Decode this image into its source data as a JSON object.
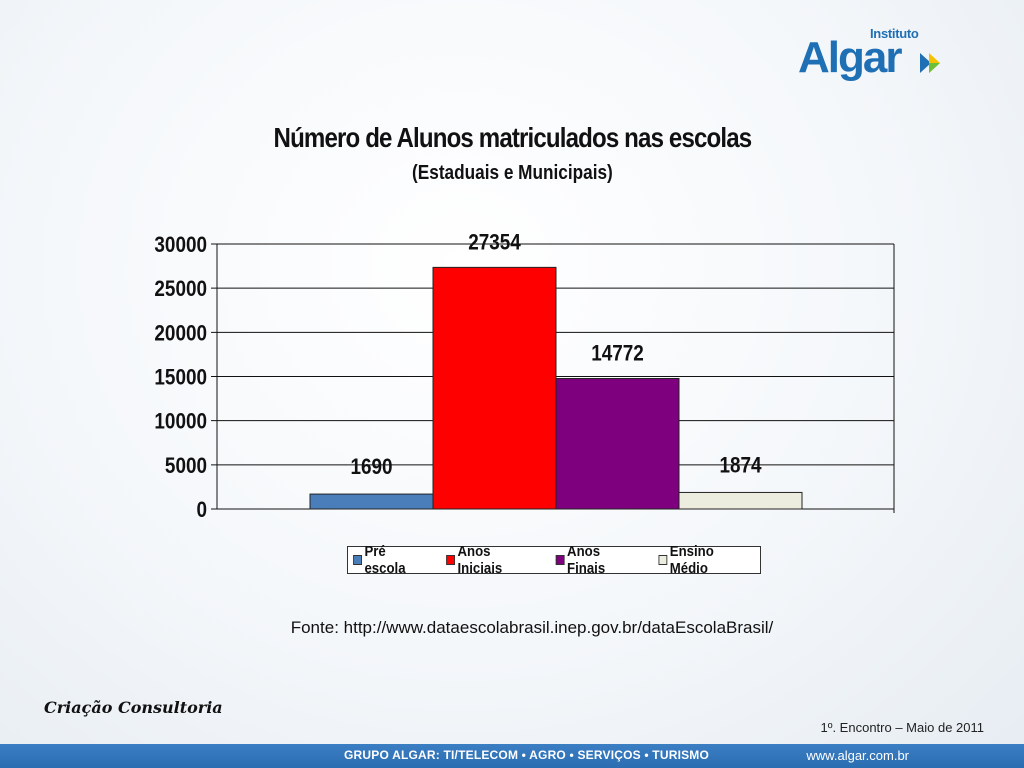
{
  "logo": {
    "top_text": "Instituto",
    "main_text": "Algar"
  },
  "chart_data": {
    "type": "bar",
    "title": "Número de Alunos matriculados nas escolas",
    "subtitle": "(Estaduais e Municipais)",
    "xlabel": "",
    "ylabel": "",
    "ylim": [
      0,
      30000
    ],
    "yticks": [
      0,
      5000,
      10000,
      15000,
      20000,
      25000,
      30000
    ],
    "grid": true,
    "legend_position": "bottom",
    "series": [
      {
        "name": "Pré escola",
        "value": 1690,
        "color": "#4a7ebb"
      },
      {
        "name": "Anos Iniciais",
        "value": 27354,
        "color": "#ff0000"
      },
      {
        "name": "Anos Finais",
        "value": 14772,
        "color": "#7f007f"
      },
      {
        "name": "Ensino Médio",
        "value": 1874,
        "color": "#ededdf"
      }
    ]
  },
  "source": "Fonte: http://www.dataescolabrasil.inep.gov.br/dataEscolaBrasil/",
  "signature": "Criação Consultoria",
  "meeting": "1º. Encontro – Maio de 2011",
  "footer": {
    "groups": "GRUPO ALGAR: TI/TELECOM • AGRO • SERVIÇOS • TURISMO",
    "url": "www.algar.com.br",
    "color": "#2a6db1"
  }
}
